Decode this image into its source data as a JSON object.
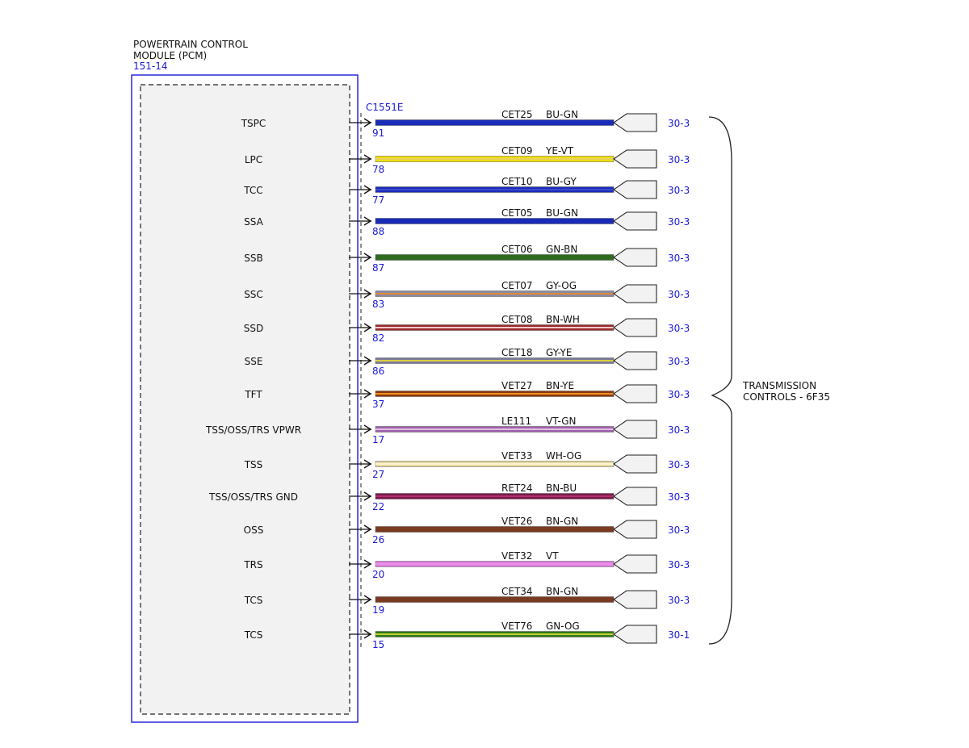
{
  "module": {
    "title_line1": "POWERTRAIN CONTROL",
    "title_line2": "MODULE (PCM)",
    "ref": "151-14",
    "connector": "C1551E"
  },
  "destination": {
    "line1": "TRANSMISSION",
    "line2": "CONTROLS - 6F35"
  },
  "colors": {
    "module_border": "#1a1ad6",
    "module_fill": "#f2f2f2",
    "ref_text": "#1a1ad6"
  },
  "circuits": [
    {
      "signal": "TSPC",
      "pin": "91",
      "circuit": "CET25",
      "wire_color": "BU-GN",
      "page": "30-3",
      "base": "#1a2bb8",
      "stripe": "#1a2bb8"
    },
    {
      "signal": "LPC",
      "pin": "78",
      "circuit": "CET09",
      "wire_color": "YE-VT",
      "page": "30-3",
      "base": "#f0e000",
      "stripe": "#e8d060"
    },
    {
      "signal": "TCC",
      "pin": "77",
      "circuit": "CET10",
      "wire_color": "BU-GY",
      "page": "30-3",
      "base": "#1a2bb8",
      "stripe": "#3a4ad0"
    },
    {
      "signal": "SSA",
      "pin": "88",
      "circuit": "CET05",
      "wire_color": "BU-GN",
      "page": "30-3",
      "base": "#1a2bb8",
      "stripe": "#1a2bb8"
    },
    {
      "signal": "SSB",
      "pin": "87",
      "circuit": "CET06",
      "wire_color": "GN-BN",
      "page": "30-3",
      "base": "#2e6b1e",
      "stripe": "#2e6b1e"
    },
    {
      "signal": "SSC",
      "pin": "83",
      "circuit": "CET07",
      "wire_color": "GY-OG",
      "page": "30-3",
      "base": "#8a8aa8",
      "stripe": "#e08a30"
    },
    {
      "signal": "SSD",
      "pin": "82",
      "circuit": "CET08",
      "wire_color": "BN-WH",
      "page": "30-3",
      "base": "#9a2a2a",
      "stripe": "#f0c8c8"
    },
    {
      "signal": "SSE",
      "pin": "86",
      "circuit": "CET18",
      "wire_color": "GY-YE",
      "page": "30-3",
      "base": "#7a7a9a",
      "stripe": "#d8d040"
    },
    {
      "signal": "TFT",
      "pin": "37",
      "circuit": "VET27",
      "wire_color": "BN-YE",
      "page": "30-3",
      "base": "#8a3a10",
      "stripe": "#f09020"
    },
    {
      "signal": "TSS/OSS/TRS VPWR",
      "pin": "17",
      "circuit": "LE111",
      "wire_color": "VT-GN",
      "page": "30-3",
      "base": "#a060b0",
      "stripe": "#e0c0e0"
    },
    {
      "signal": "TSS",
      "pin": "27",
      "circuit": "VET33",
      "wire_color": "WH-OG",
      "page": "30-3",
      "base": "#e8d8a0",
      "stripe": "#fff4d0"
    },
    {
      "signal": "TSS/OSS/TRS GND",
      "pin": "22",
      "circuit": "RET24",
      "wire_color": "BN-BU",
      "page": "30-3",
      "base": "#7a1a4a",
      "stripe": "#b03070"
    },
    {
      "signal": "OSS",
      "pin": "26",
      "circuit": "VET26",
      "wire_color": "BN-GN",
      "page": "30-3",
      "base": "#7a3a22",
      "stripe": "#7a3a22"
    },
    {
      "signal": "TRS",
      "pin": "20",
      "circuit": "VET32",
      "wire_color": "VT",
      "page": "30-3",
      "base": "#e080e0",
      "stripe": "#e890e8"
    },
    {
      "signal": "TCS",
      "pin": "19",
      "circuit": "CET34",
      "wire_color": "BN-GN",
      "page": "30-3",
      "base": "#7a3a22",
      "stripe": "#7a3a22"
    },
    {
      "signal": "TCS",
      "pin": "15",
      "circuit": "VET76",
      "wire_color": "GN-OG",
      "page": "30-1",
      "base": "#2e7a1a",
      "stripe": "#c8d030"
    }
  ]
}
